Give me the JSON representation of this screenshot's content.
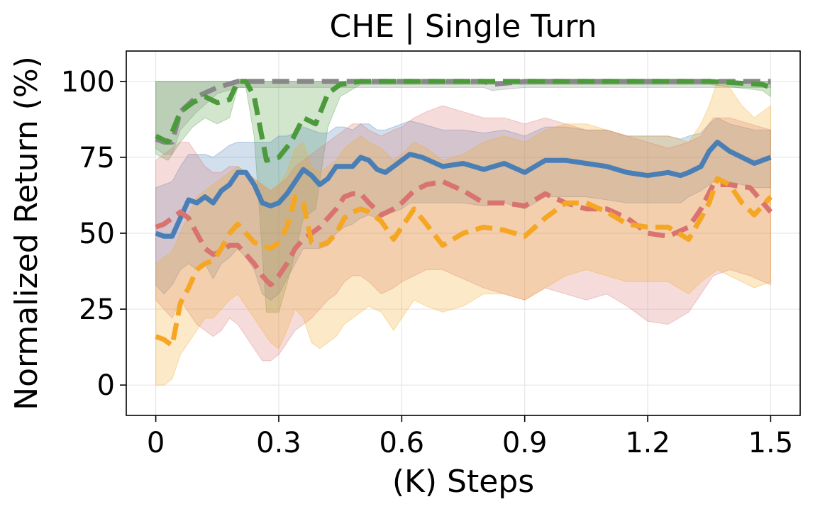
{
  "chart_data": {
    "type": "line",
    "title": "CHE | Single Turn",
    "xlabel": "(K) Steps",
    "ylabel": "Normalized Return (%)",
    "xlim": [
      -0.072,
      1.572
    ],
    "ylim": [
      -10,
      110
    ],
    "xticks": [
      0,
      0.3,
      0.6,
      0.9,
      1.2,
      1.5
    ],
    "xtick_labels": [
      "0",
      "0.3",
      "0.6",
      "0.9",
      "1.2",
      "1.5"
    ],
    "yticks": [
      0,
      25,
      50,
      75,
      100
    ],
    "ytick_labels": [
      "0",
      "25",
      "50",
      "75",
      "100"
    ],
    "grid": true,
    "series": [
      {
        "color": "#888888",
        "dash": "dashed",
        "x": [
          0,
          0.02,
          0.04,
          0.06,
          0.1,
          0.15,
          0.2,
          0.3,
          0.45,
          0.6,
          0.8,
          0.82,
          0.9,
          1.2,
          1.5
        ],
        "y": [
          81,
          80,
          80,
          90,
          95,
          98,
          100,
          100,
          100,
          100,
          100,
          99,
          100,
          100,
          100
        ],
        "lower": [
          78,
          76,
          76,
          84,
          90,
          96,
          98,
          98,
          98,
          98,
          98,
          97,
          98,
          98,
          98
        ],
        "upper": [
          100,
          100,
          100,
          100,
          100,
          100,
          100,
          100,
          100,
          100,
          100,
          100,
          100,
          100,
          100
        ]
      },
      {
        "color": "#4c9a3b",
        "dash": "dashed",
        "x": [
          0,
          0.03,
          0.06,
          0.09,
          0.12,
          0.15,
          0.18,
          0.2,
          0.22,
          0.24,
          0.27,
          0.3,
          0.33,
          0.36,
          0.39,
          0.42,
          0.45,
          0.5,
          0.6,
          0.8,
          0.9,
          1.2,
          1.35,
          1.48,
          1.5
        ],
        "y": [
          82,
          80,
          90,
          93,
          95,
          93,
          94,
          100,
          100,
          95,
          74,
          75,
          80,
          88,
          86,
          96,
          99,
          100,
          100,
          100,
          100,
          100,
          100,
          99,
          98
        ],
        "lower": [
          76,
          74,
          80,
          85,
          88,
          86,
          88,
          98,
          98,
          82,
          24,
          24,
          38,
          55,
          58,
          85,
          95,
          99,
          99,
          99,
          99,
          99,
          99,
          97,
          95
        ],
        "upper": [
          100,
          100,
          100,
          100,
          100,
          100,
          100,
          100,
          100,
          100,
          100,
          100,
          100,
          100,
          100,
          100,
          100,
          100,
          100,
          100,
          100,
          100,
          100,
          100,
          100
        ]
      },
      {
        "color": "#4a7fb5",
        "dash": "solid",
        "x": [
          0,
          0.02,
          0.04,
          0.06,
          0.08,
          0.1,
          0.12,
          0.14,
          0.16,
          0.18,
          0.2,
          0.22,
          0.24,
          0.26,
          0.28,
          0.3,
          0.32,
          0.34,
          0.36,
          0.38,
          0.4,
          0.42,
          0.44,
          0.46,
          0.48,
          0.5,
          0.52,
          0.54,
          0.56,
          0.58,
          0.6,
          0.62,
          0.65,
          0.7,
          0.75,
          0.8,
          0.85,
          0.9,
          0.95,
          1.0,
          1.05,
          1.1,
          1.15,
          1.2,
          1.25,
          1.28,
          1.3,
          1.33,
          1.35,
          1.37,
          1.4,
          1.43,
          1.46,
          1.48,
          1.5
        ],
        "y": [
          50,
          49,
          49,
          55,
          61,
          60,
          62,
          60,
          64,
          66,
          70,
          70,
          66,
          60,
          59,
          60,
          63,
          67,
          71,
          69,
          66,
          68,
          72,
          72,
          72,
          75,
          74,
          71,
          70,
          72,
          74,
          76,
          75,
          72,
          73,
          71,
          73,
          70,
          74,
          74,
          73,
          72,
          70,
          69,
          70,
          69,
          70,
          72,
          77,
          80,
          77,
          75,
          73,
          74,
          75
        ],
        "lower": [
          33,
          30,
          33,
          38,
          40,
          38,
          40,
          35,
          40,
          42,
          45,
          42,
          38,
          30,
          28,
          30,
          35,
          40,
          45,
          45,
          45,
          46,
          50,
          52,
          53,
          55,
          56,
          55,
          56,
          57,
          58,
          60,
          60,
          60,
          60,
          59,
          60,
          58,
          62,
          62,
          62,
          61,
          60,
          60,
          60,
          60,
          62,
          64,
          66,
          68,
          67,
          66,
          65,
          65,
          65
        ],
        "upper": [
          65,
          66,
          67,
          72,
          76,
          76,
          76,
          75,
          77,
          79,
          80,
          80,
          80,
          80,
          80,
          82,
          82,
          83,
          85,
          84,
          83,
          83,
          85,
          85,
          84,
          86,
          86,
          84,
          84,
          85,
          86,
          87,
          86,
          84,
          84,
          83,
          84,
          82,
          85,
          85,
          84,
          84,
          82,
          82,
          82,
          81,
          82,
          83,
          86,
          88,
          86,
          85,
          84,
          84,
          84
        ]
      },
      {
        "color": "#d9736f",
        "dash": "dashed",
        "x": [
          0,
          0.02,
          0.04,
          0.06,
          0.08,
          0.1,
          0.12,
          0.14,
          0.16,
          0.18,
          0.2,
          0.22,
          0.24,
          0.26,
          0.28,
          0.3,
          0.32,
          0.34,
          0.36,
          0.38,
          0.4,
          0.42,
          0.44,
          0.46,
          0.48,
          0.5,
          0.52,
          0.55,
          0.58,
          0.6,
          0.63,
          0.66,
          0.7,
          0.75,
          0.8,
          0.85,
          0.9,
          0.95,
          1.0,
          1.05,
          1.1,
          1.15,
          1.2,
          1.25,
          1.3,
          1.33,
          1.36,
          1.4,
          1.45,
          1.5
        ],
        "y": [
          52,
          53,
          55,
          57,
          55,
          50,
          45,
          43,
          44,
          46,
          46,
          43,
          40,
          36,
          33,
          36,
          40,
          45,
          48,
          50,
          52,
          55,
          58,
          62,
          63,
          63,
          60,
          56,
          58,
          60,
          64,
          66,
          67,
          64,
          60,
          60,
          59,
          63,
          60,
          58,
          58,
          55,
          50,
          49,
          52,
          58,
          66,
          66,
          65,
          57
        ],
        "lower": [
          28,
          25,
          22,
          28,
          24,
          20,
          18,
          16,
          18,
          22,
          20,
          16,
          12,
          8,
          8,
          10,
          14,
          18,
          20,
          22,
          25,
          28,
          30,
          34,
          36,
          36,
          34,
          30,
          32,
          34,
          36,
          38,
          38,
          35,
          32,
          30,
          28,
          32,
          30,
          28,
          30,
          26,
          21,
          20,
          24,
          30,
          36,
          38,
          36,
          33
        ],
        "upper": [
          74,
          76,
          78,
          80,
          80,
          76,
          72,
          70,
          70,
          72,
          72,
          70,
          68,
          66,
          64,
          66,
          68,
          72,
          74,
          76,
          78,
          80,
          82,
          84,
          86,
          86,
          84,
          82,
          84,
          85,
          88,
          90,
          92,
          90,
          88,
          88,
          86,
          88,
          86,
          84,
          84,
          82,
          80,
          78,
          80,
          82,
          88,
          88,
          86,
          84
        ]
      },
      {
        "color": "#f5a623",
        "dash": "dashed",
        "x": [
          0,
          0.02,
          0.04,
          0.06,
          0.08,
          0.1,
          0.12,
          0.14,
          0.16,
          0.18,
          0.2,
          0.22,
          0.24,
          0.26,
          0.28,
          0.3,
          0.32,
          0.34,
          0.36,
          0.38,
          0.4,
          0.42,
          0.44,
          0.46,
          0.48,
          0.5,
          0.52,
          0.55,
          0.58,
          0.6,
          0.63,
          0.66,
          0.7,
          0.75,
          0.8,
          0.85,
          0.9,
          0.95,
          1.0,
          1.05,
          1.1,
          1.15,
          1.2,
          1.25,
          1.3,
          1.33,
          1.35,
          1.37,
          1.4,
          1.43,
          1.46,
          1.5
        ],
        "y": [
          16,
          15,
          13,
          27,
          32,
          38,
          40,
          41,
          45,
          50,
          53,
          50,
          47,
          46,
          45,
          47,
          52,
          62,
          60,
          47,
          46,
          47,
          50,
          55,
          57,
          58,
          57,
          54,
          48,
          52,
          58,
          53,
          46,
          50,
          52,
          51,
          49,
          55,
          60,
          60,
          57,
          53,
          52,
          52,
          48,
          55,
          60,
          68,
          66,
          60,
          56,
          62
        ],
        "lower": [
          0,
          0,
          2,
          10,
          14,
          18,
          22,
          22,
          25,
          28,
          30,
          26,
          22,
          18,
          14,
          12,
          18,
          25,
          22,
          14,
          12,
          14,
          16,
          20,
          22,
          24,
          26,
          24,
          18,
          22,
          28,
          26,
          24,
          26,
          30,
          30,
          28,
          32,
          36,
          38,
          36,
          34,
          34,
          34,
          30,
          34,
          36,
          38,
          36,
          34,
          32,
          34
        ],
        "upper": [
          40,
          42,
          44,
          50,
          56,
          62,
          64,
          66,
          68,
          70,
          72,
          70,
          68,
          66,
          64,
          66,
          70,
          78,
          80,
          72,
          70,
          72,
          74,
          78,
          80,
          82,
          80,
          78,
          74,
          76,
          80,
          78,
          74,
          76,
          80,
          82,
          80,
          84,
          86,
          86,
          84,
          82,
          82,
          82,
          80,
          86,
          92,
          100,
          98,
          92,
          88,
          92
        ]
      }
    ]
  }
}
